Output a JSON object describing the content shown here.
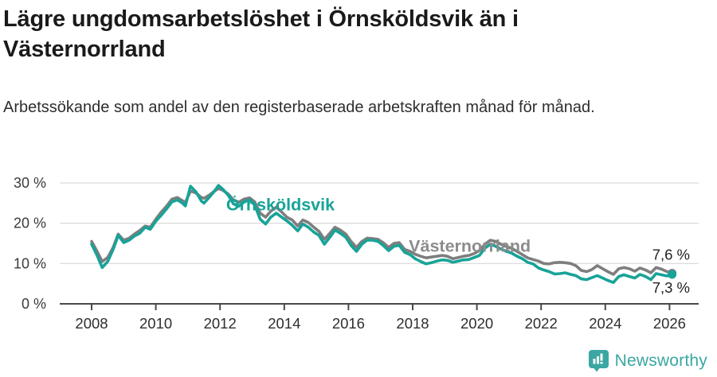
{
  "header": {
    "title": "Lägre ungdomsarbetslöshet i Örnsköldsvik än i Västernorrland",
    "subtitle": "Arbetssökande som andel av den registerbaserade arbetskraften månad för månad."
  },
  "footer": {
    "brand": "Newsworthy",
    "logo_icon": "newsworthy-speech-bubble-chart-icon"
  },
  "colors": {
    "ornskoldsvik": "#17a398",
    "vasternorrland": "#7e7e7e",
    "vasternorrland_label": "#8c8c8c",
    "brand_teal": "#3aa7a2",
    "grid": "#dcdcdc",
    "axis": "#4a4a4a",
    "axis_text": "#2e2e2e",
    "end_label_text": "#222222"
  },
  "chart_data": {
    "type": "line",
    "title": "Lägre ungdomsarbetslöshet i Örnsköldsvik än i Västernorrland",
    "subtitle": "Arbetssökande som andel av den registerbaserade arbetskraften månad för månad.",
    "xlabel": "",
    "ylabel": "",
    "ylim": [
      0,
      32
    ],
    "xlim": [
      2007.85,
      2026.9
    ],
    "grid": "horizontal",
    "legend_position": "inline-annotations",
    "x_ticks": [
      2008,
      2010,
      2012,
      2014,
      2016,
      2018,
      2020,
      2022,
      2024,
      2026
    ],
    "y_ticks": [
      {
        "value": 0,
        "label": "0 %"
      },
      {
        "value": 10,
        "label": "10 %"
      },
      {
        "value": 20,
        "label": "20 %"
      },
      {
        "value": 30,
        "label": "30 %"
      }
    ],
    "x": [
      2008,
      2008.17,
      2008.33,
      2008.5,
      2008.67,
      2008.83,
      2009,
      2009.17,
      2009.33,
      2009.5,
      2009.67,
      2009.83,
      2010,
      2010.17,
      2010.33,
      2010.5,
      2010.67,
      2010.83,
      2010.92,
      2011.08,
      2011.25,
      2011.42,
      2011.5,
      2011.67,
      2011.83,
      2011.95,
      2012.08,
      2012.25,
      2012.42,
      2012.58,
      2012.75,
      2012.92,
      2013.08,
      2013.25,
      2013.42,
      2013.58,
      2013.75,
      2013.92,
      2014.08,
      2014.25,
      2014.42,
      2014.58,
      2014.75,
      2014.92,
      2015.08,
      2015.25,
      2015.42,
      2015.58,
      2015.75,
      2015.92,
      2016.08,
      2016.25,
      2016.42,
      2016.58,
      2016.75,
      2016.92,
      2017.08,
      2017.25,
      2017.42,
      2017.58,
      2017.75,
      2017.92,
      2018.08,
      2018.25,
      2018.42,
      2018.58,
      2018.75,
      2018.92,
      2019.08,
      2019.25,
      2019.42,
      2019.58,
      2019.75,
      2019.92,
      2020.08,
      2020.25,
      2020.42,
      2020.58,
      2020.75,
      2020.92,
      2021.08,
      2021.25,
      2021.42,
      2021.58,
      2021.75,
      2021.92,
      2022.08,
      2022.25,
      2022.42,
      2022.58,
      2022.75,
      2022.92,
      2023.08,
      2023.25,
      2023.42,
      2023.58,
      2023.75,
      2023.92,
      2024.08,
      2024.25,
      2024.42,
      2024.58,
      2024.75,
      2024.92,
      2025.08,
      2025.25,
      2025.42,
      2025.58,
      2025.75,
      2025.92,
      2026.08
    ],
    "series": [
      {
        "name": "Västernorrland",
        "color": "#7e7e7e",
        "end_label": "7,6 %",
        "end_value": 7.6,
        "values": [
          15.5,
          13.0,
          10.5,
          11.5,
          14.0,
          17.3,
          15.8,
          16.3,
          17.3,
          18.2,
          19.3,
          19.0,
          21.0,
          22.8,
          24.2,
          26.0,
          26.4,
          25.6,
          25.2,
          28.0,
          27.5,
          26.4,
          26.2,
          27.0,
          28.0,
          28.6,
          28.2,
          27.3,
          25.8,
          25.2,
          26.0,
          26.3,
          25.3,
          22.5,
          21.5,
          23.0,
          24.0,
          22.8,
          21.5,
          20.8,
          19.3,
          20.8,
          20.2,
          19.0,
          18.0,
          16.0,
          17.5,
          19.0,
          18.3,
          17.3,
          15.5,
          14.0,
          15.5,
          16.3,
          16.2,
          16.0,
          15.2,
          14.0,
          15.0,
          15.2,
          13.5,
          13.0,
          12.3,
          11.8,
          11.4,
          11.6,
          11.8,
          12.0,
          11.8,
          11.2,
          11.5,
          11.8,
          12.0,
          12.5,
          13.2,
          14.8,
          15.8,
          15.5,
          14.8,
          14.2,
          13.8,
          13.0,
          12.2,
          11.4,
          11.0,
          10.6,
          10.0,
          9.9,
          10.2,
          10.3,
          10.2,
          10.0,
          9.5,
          8.3,
          8.0,
          8.5,
          9.5,
          8.7,
          8.0,
          7.3,
          8.7,
          9.0,
          8.7,
          8.1,
          8.9,
          8.4,
          7.7,
          9.0,
          8.6,
          8.0,
          7.6
        ]
      },
      {
        "name": "Örnsköldsvik",
        "color": "#17a398",
        "end_label": "7,3 %",
        "end_value": 7.3,
        "values": [
          14.8,
          12.0,
          9.0,
          10.5,
          13.5,
          17.0,
          15.2,
          15.8,
          16.8,
          17.5,
          19.0,
          18.5,
          20.5,
          22.0,
          23.5,
          25.3,
          25.8,
          25.0,
          24.3,
          29.2,
          27.8,
          25.5,
          25.0,
          26.5,
          28.0,
          29.4,
          28.5,
          27.0,
          24.8,
          24.2,
          25.3,
          25.8,
          24.5,
          21.0,
          19.8,
          21.5,
          22.5,
          21.5,
          20.6,
          19.5,
          18.1,
          19.8,
          19.0,
          17.8,
          17.0,
          14.8,
          16.5,
          18.3,
          17.5,
          16.5,
          14.5,
          13.0,
          14.8,
          15.8,
          15.8,
          15.5,
          14.5,
          13.2,
          14.3,
          14.5,
          12.8,
          12.2,
          11.2,
          10.5,
          9.9,
          10.2,
          10.6,
          10.9,
          10.8,
          10.3,
          10.6,
          10.9,
          11.0,
          11.5,
          12.0,
          13.8,
          14.8,
          14.3,
          13.6,
          13.0,
          12.6,
          11.8,
          11.2,
          10.3,
          9.9,
          8.9,
          8.4,
          8.0,
          7.4,
          7.5,
          7.7,
          7.3,
          7.0,
          6.2,
          6.0,
          6.5,
          7.0,
          6.4,
          5.8,
          5.3,
          6.8,
          7.2,
          6.8,
          6.4,
          7.3,
          6.8,
          6.0,
          7.5,
          7.2,
          6.9,
          7.3
        ]
      }
    ],
    "annotations": [
      {
        "text": "Örnsköldsvik",
        "x": 2012.19,
        "y": 23.2,
        "color": "#17a398",
        "anchor": "start"
      },
      {
        "text": "Västernorrland",
        "x": 2017.88,
        "y": 12.9,
        "color": "#8c8c8c",
        "anchor": "start"
      }
    ]
  }
}
